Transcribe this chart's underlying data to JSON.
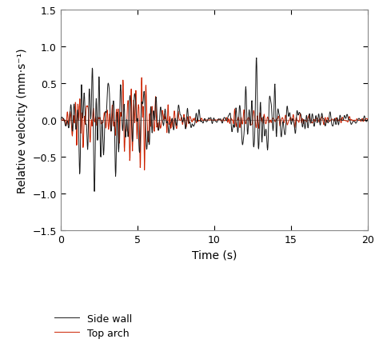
{
  "t_start": 0,
  "t_end": 20,
  "dt": 0.02,
  "xlim": [
    0,
    20
  ],
  "ylim": [
    -1.5,
    1.5
  ],
  "yticks": [
    -1.5,
    -1.0,
    -0.5,
    0.0,
    0.5,
    1.0,
    1.5
  ],
  "xticks": [
    0,
    5,
    10,
    15,
    20
  ],
  "xlabel": "Time (s)",
  "ylabel": "Relative velocity (mm·s⁻¹)",
  "side_wall_color": "#1a1a1a",
  "top_arch_color": "#cc2200",
  "side_wall_label": "Side wall",
  "top_arch_label": "Top arch",
  "linewidth_sw": 0.7,
  "linewidth_ta": 0.7,
  "background_color": "#ffffff",
  "hline_color": "#888888",
  "hline_lw": 0.6,
  "legend_fontsize": 9,
  "axis_fontsize": 10,
  "tick_fontsize": 9,
  "spine_color": "#888888",
  "spine_lw": 0.8
}
